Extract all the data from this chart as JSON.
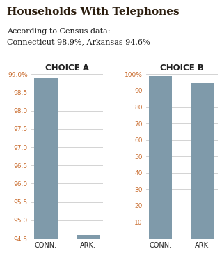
{
  "title": "Households With Telephones",
  "subtitle_line1": "According to Census data:",
  "subtitle_line2": "Connecticut 98.9%, Arkansas 94.6%",
  "title_color": "#2b1d0e",
  "subtitle_color": "#1a1a1a",
  "choice_a_label": "CHOICE A",
  "choice_b_label": "CHOICE B",
  "categories": [
    "CONN.",
    "ARK."
  ],
  "values_a": [
    98.9,
    94.6
  ],
  "values_b": [
    98.9,
    94.6
  ],
  "bar_color": "#7f9aaa",
  "ylim_a": [
    94.5,
    99.0
  ],
  "yticks_a": [
    94.5,
    95.0,
    95.5,
    96.0,
    96.5,
    97.0,
    97.5,
    98.0,
    98.5,
    99.0
  ],
  "ytick_labels_a": [
    "94.5",
    "95.0",
    "95.5",
    "96.0",
    "96.5",
    "97.0",
    "97.5",
    "98.0",
    "98.5",
    "99.0%"
  ],
  "ylim_b": [
    0,
    100
  ],
  "yticks_b": [
    10,
    20,
    30,
    40,
    50,
    60,
    70,
    80,
    90,
    100
  ],
  "ytick_labels_b": [
    "10",
    "20",
    "30",
    "40",
    "50",
    "60",
    "70",
    "80",
    "90",
    "100%"
  ],
  "background_color": "#ffffff",
  "grid_color": "#cccccc",
  "tick_label_color": "#c8692a",
  "axes_label_color": "#222222",
  "title_fontsize": 11,
  "subtitle_fontsize": 8,
  "choice_label_fontsize": 8.5,
  "tick_fontsize": 6.5,
  "xtick_fontsize": 7
}
